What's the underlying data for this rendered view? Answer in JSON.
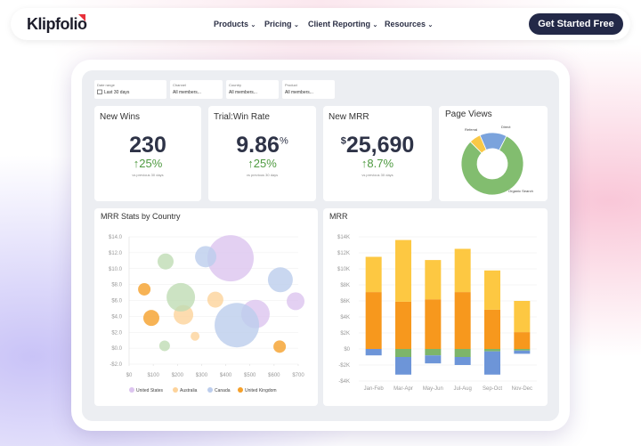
{
  "nav": {
    "logo": "Klipfolio",
    "menu": [
      "Products",
      "Pricing",
      "Client Reporting",
      "Resources"
    ],
    "cta": "Get Started Free"
  },
  "filters": [
    {
      "label": "Date range",
      "value": "Last 30 days"
    },
    {
      "label": "Channel",
      "value": "All members..."
    },
    {
      "label": "Country",
      "value": "All members..."
    },
    {
      "label": "Product",
      "value": "All members..."
    }
  ],
  "kpis": [
    {
      "title": "New Wins",
      "value": "230",
      "change": "↑25%",
      "note": "vs previous 30 days"
    },
    {
      "title": "Trial:Win Rate",
      "value": "9.86",
      "unit": "%",
      "change": "↑25%",
      "note": "vs previous 30 days"
    },
    {
      "title": "New MRR",
      "currency": "$",
      "value": "25,690",
      "change": "↑8.7%",
      "note": "vs previous 30 days"
    }
  ],
  "chart_data": [
    {
      "type": "pie",
      "title": "Page Views",
      "donut": true,
      "categories": [
        "Referral",
        "Direct",
        "Organic Search"
      ],
      "values": [
        6,
        14,
        80
      ],
      "colors": [
        "#f9c846",
        "#7ba3dc",
        "#82bd6f"
      ]
    },
    {
      "type": "scatter",
      "title": "MRR Stats by Country",
      "grid": true,
      "xlim": [
        0,
        700
      ],
      "ylim": [
        -2,
        14
      ],
      "xticks": [
        {
          "value": 0,
          "label": "$0"
        },
        {
          "value": 100,
          "label": "$100"
        },
        {
          "value": 200,
          "label": "$200"
        },
        {
          "value": 300,
          "label": "$300"
        },
        {
          "value": 400,
          "label": "$400"
        },
        {
          "value": 500,
          "label": "$500"
        },
        {
          "value": 600,
          "label": "$600"
        },
        {
          "value": 700,
          "label": "$700"
        }
      ],
      "yticks": [
        {
          "value": -2,
          "label": "-$2.0"
        },
        {
          "value": 0,
          "label": "$0.0"
        },
        {
          "value": 2,
          "label": "$2.0"
        },
        {
          "value": 4,
          "label": "$4.0"
        },
        {
          "value": 6,
          "label": "$6.0"
        },
        {
          "value": 8,
          "label": "$8.0"
        },
        {
          "value": 10,
          "label": "$10.0"
        },
        {
          "value": 12,
          "label": "$12.0"
        },
        {
          "value": 14,
          "label": "$14.0"
        }
      ],
      "series": [
        {
          "name": "United States",
          "color": "#dcc4ef",
          "x": [
            420,
            523,
            689
          ],
          "values": [
            11.3,
            4.3,
            5.9
          ],
          "sizes": [
            26,
            16,
            10
          ]
        },
        {
          "name": "Australia",
          "color": "#fdd39b",
          "x": [
            225,
            357,
            273
          ],
          "values": [
            4.2,
            6.1,
            1.5
          ],
          "sizes": [
            11,
            9,
            5
          ]
        },
        {
          "name": "Canada",
          "color": "#bccdec",
          "x": [
            446,
            626,
            317
          ],
          "values": [
            2.9,
            8.6,
            11.5
          ],
          "sizes": [
            25,
            14,
            12
          ]
        },
        {
          "name": "United Kingdom",
          "color": "#f5a02a",
          "x": [
            63,
            92,
            623
          ],
          "values": [
            7.4,
            3.8,
            0.2
          ],
          "sizes": [
            7,
            9,
            7
          ]
        },
        {
          "name": null,
          "color": "#bfdcb4",
          "x": [
            151,
            214,
            147
          ],
          "values": [
            10.9,
            6.4,
            0.3
          ],
          "sizes": [
            9,
            16,
            6
          ]
        }
      ]
    },
    {
      "type": "bar",
      "title": "MRR",
      "stacked": true,
      "grid": true,
      "categories": [
        "Jan-Feb",
        "Mar-Apr",
        "May-Jun",
        "Jul-Aug",
        "Sep-Oct",
        "Nov-Dec"
      ],
      "ylim": [
        -4,
        14
      ],
      "yticks": [
        {
          "value": -4,
          "label": "-$4K"
        },
        {
          "value": -2,
          "label": "-$2K"
        },
        {
          "value": 0,
          "label": "$0"
        },
        {
          "value": 2,
          "label": "$2K"
        },
        {
          "value": 4,
          "label": "$4K"
        },
        {
          "value": 6,
          "label": "$6K"
        },
        {
          "value": 8,
          "label": "$8K"
        },
        {
          "value": 10,
          "label": "$10K"
        },
        {
          "value": 12,
          "label": "$12K"
        },
        {
          "value": 14,
          "label": "$14K"
        }
      ],
      "series": [
        {
          "color": "#f7981d",
          "values": [
            7.1,
            5.9,
            6.2,
            7.1,
            4.9,
            2.1
          ]
        },
        {
          "color": "#fdc842",
          "values": [
            4.4,
            7.7,
            4.9,
            5.4,
            4.9,
            3.9
          ]
        },
        {
          "color": "#7db56a",
          "values": [
            0,
            -1.0,
            -0.8,
            -1.0,
            -0.3,
            -0.2
          ]
        },
        {
          "color": "#6d95d8",
          "values": [
            -0.8,
            -2.2,
            -1.0,
            -1.0,
            -2.9,
            -0.4
          ]
        }
      ]
    }
  ]
}
